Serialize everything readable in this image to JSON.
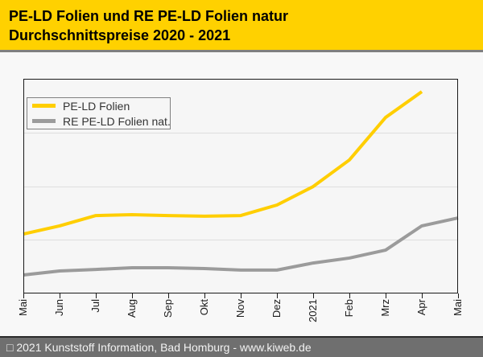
{
  "header": {
    "title_line1": "PE-LD Folien und RE PE-LD Folien natur",
    "title_line2": "Durchschnittspreise 2020 - 2021",
    "background": "#FFD100"
  },
  "chart_data": {
    "type": "line",
    "title": "PE-LD Folien und RE PE-LD Folien natur Durchschnittspreise 2020 - 2021",
    "categories": [
      "Mai",
      "Jun",
      "Jul",
      "Aug",
      "Sep",
      "Okt",
      "Nov",
      "Dez",
      "2021",
      "Feb",
      "Mrz",
      "Apr",
      "Mai"
    ],
    "xlabel": "",
    "ylabel": "",
    "y_axis": {
      "labels_shown": false,
      "gridline_count": 3,
      "unit": "percent of plot height (chart shows no y-axis scale)",
      "ylim": [
        0,
        100
      ]
    },
    "legend_position": "top-left",
    "grid": true,
    "series": [
      {
        "name": "PE-LD Folien",
        "color": "#FFCE00",
        "values": [
          27.7,
          31.5,
          36.3,
          36.7,
          36.3,
          36.0,
          36.3,
          41.2,
          49.8,
          62.2,
          82.0,
          94.0,
          null
        ]
      },
      {
        "name": "RE PE-LD Folien nat.",
        "color": "#9B9B9B",
        "values": [
          8.6,
          10.5,
          11.2,
          12.0,
          12.0,
          11.6,
          10.9,
          10.9,
          14.2,
          16.5,
          20.2,
          31.5,
          35.2
        ]
      }
    ]
  },
  "palette": {
    "plot_background": "#f6f6f6",
    "page_background": "#f8f8f8",
    "gridline": "#dedede",
    "axis": "#1a1a1a",
    "header_divider": "#808080",
    "footer_bar": "#6F6F6F"
  },
  "footer": {
    "credit": "□ 2021 Kunststoff Information, Bad Homburg - www.kiweb.de"
  }
}
